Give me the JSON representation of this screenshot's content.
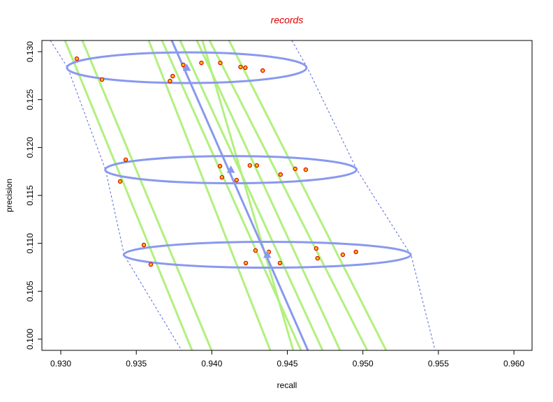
{
  "chart_data": {
    "type": "scatter",
    "title": "records",
    "x_label": "recall",
    "y_label": "precision",
    "xlim": [
      0.92875,
      0.9612
    ],
    "ylim": [
      0.09883,
      0.13117
    ],
    "xticks": [
      {
        "value": 0.93,
        "label": "0.930"
      },
      0.935,
      {
        "value": 0.94,
        "label": "0.940"
      },
      0.945,
      {
        "value": 0.95,
        "label": "0.950"
      },
      0.955,
      {
        "value": 0.96,
        "label": "0.960"
      }
    ],
    "yticks": [
      {
        "value": 0.1,
        "label": "0.100"
      },
      0.105,
      {
        "value": 0.11,
        "label": "0.110"
      },
      0.115,
      {
        "value": 0.12,
        "label": "0.120"
      },
      0.125,
      {
        "value": 0.13,
        "label": "0.130"
      }
    ],
    "lines_color": "#b2f07e",
    "lines": [
      {
        "x": [
          0.93028,
          0.93869
        ],
        "y": [
          0.13117,
          0.09883
        ]
      },
      {
        "x": [
          0.93143,
          0.93998
        ],
        "y": [
          0.13117,
          0.09883
        ]
      },
      {
        "x": [
          0.93582,
          0.94387
        ],
        "y": [
          0.13117,
          0.09883
        ]
      },
      {
        "x": [
          0.9367,
          0.9459
        ],
        "y": [
          0.13117,
          0.09883
        ]
      },
      {
        "x": [
          0.9379,
          0.94733
        ],
        "y": [
          0.13117,
          0.09883
        ]
      },
      {
        "x": [
          0.93901,
          0.94849
        ],
        "y": [
          0.13117,
          0.09883
        ]
      },
      {
        "x": [
          0.93985,
          0.95029
        ],
        "y": [
          0.13117,
          0.09883
        ]
      },
      {
        "x": [
          0.94114,
          0.95154
        ],
        "y": [
          0.13117,
          0.09883
        ]
      },
      {
        "x": [
          0.93938,
          0.94539
        ],
        "y": [
          0.13117,
          0.09883
        ]
      }
    ],
    "band_color": "#5566dd",
    "bands": [
      {
        "x": [
          0.92931,
          0.93046,
          0.93296,
          0.93421,
          0.938
        ],
        "y": [
          0.13117,
          0.12833,
          0.11769,
          0.10874,
          0.09883
        ]
      },
      {
        "x": [
          0.9453,
          0.94632,
          0.9496,
          0.9532,
          0.95478
        ],
        "y": [
          0.13117,
          0.12833,
          0.11769,
          0.10874,
          0.09883
        ]
      }
    ],
    "fit_color": "#8899ee",
    "fit_line": {
      "x": [
        0.93735,
        0.94636
      ],
      "y": [
        0.13117,
        0.09883
      ]
    },
    "ellipses": [
      {
        "cx": 0.93834,
        "cy": 0.12833,
        "rx": 0.00793,
        "ry": 0.0016
      },
      {
        "cx": 0.94126,
        "cy": 0.11769,
        "rx": 0.00832,
        "ry": 0.00142
      },
      {
        "cx": 0.94367,
        "cy": 0.10881,
        "rx": 0.0095,
        "ry": 0.00135
      }
    ],
    "centers": {
      "x": [
        0.93834,
        0.94126,
        0.94367
      ],
      "y": [
        0.12833,
        0.11769,
        0.10881
      ]
    },
    "points_color": "#e00000",
    "points_fill": "#f2c200",
    "points": {
      "x": [
        0.93106,
        0.93273,
        0.9343,
        0.93393,
        0.9355,
        0.93596,
        0.93723,
        0.93741,
        0.93811,
        0.93931,
        0.94056,
        0.9419,
        0.94222,
        0.94337,
        0.94054,
        0.94067,
        0.94164,
        0.94252,
        0.94298,
        0.94455,
        0.94552,
        0.94622,
        0.94289,
        0.94225,
        0.94377,
        0.94451,
        0.94691,
        0.947,
        0.94867,
        0.94954
      ],
      "y": [
        0.12927,
        0.12709,
        0.11872,
        0.11646,
        0.10983,
        0.10779,
        0.12694,
        0.12745,
        0.12862,
        0.12883,
        0.12883,
        0.1284,
        0.12833,
        0.12803,
        0.11806,
        0.11689,
        0.1166,
        0.11813,
        0.11813,
        0.11718,
        0.11777,
        0.11769,
        0.10925,
        0.10794,
        0.1091,
        0.10794,
        0.10946,
        0.10844,
        0.10881,
        0.1091
      ]
    }
  }
}
